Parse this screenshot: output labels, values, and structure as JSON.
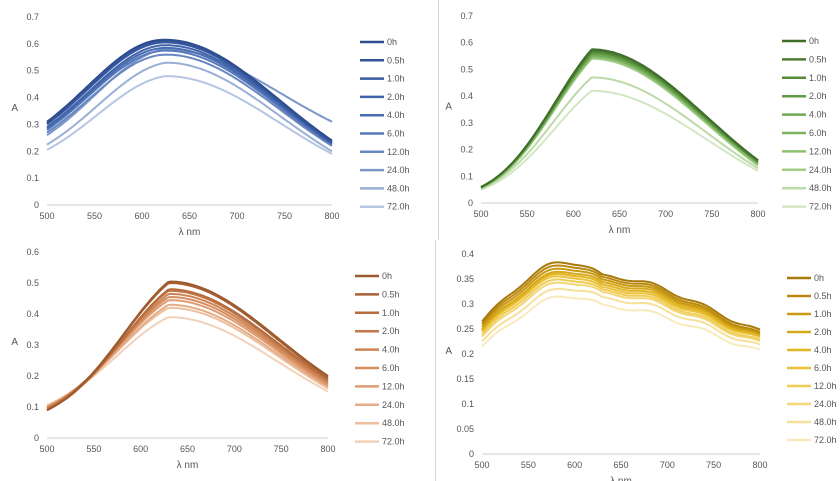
{
  "chart_data": [
    {
      "type": "line",
      "panel": "top-left",
      "xlabel": "λ nm",
      "ylabel": "A",
      "xlim": [
        500,
        800
      ],
      "ylim": [
        0,
        0.7
      ],
      "xticks": [
        "500",
        "550",
        "600",
        "650",
        "700",
        "750",
        "800"
      ],
      "yticks": [
        "0",
        "0.1",
        "0.2",
        "0.3",
        "0.4",
        "0.5",
        "0.6",
        "0.7"
      ],
      "grid": false,
      "legend": "right",
      "colors": [
        "#2f4e8f",
        "#34549a",
        "#3a5ba3",
        "#4063aa",
        "#496db2",
        "#5779b9",
        "#6887c1",
        "#7b97c9",
        "#9aafd6",
        "#b6c5e2"
      ],
      "series": [
        {
          "name": "0h",
          "y0": 0.31,
          "peak": 0.615,
          "peak_x": 625,
          "y800": 0.24
        },
        {
          "name": "0.5h",
          "y0": 0.305,
          "peak": 0.61,
          "peak_x": 625,
          "y800": 0.235
        },
        {
          "name": "1.0h",
          "y0": 0.3,
          "peak": 0.605,
          "peak_x": 625,
          "y800": 0.235
        },
        {
          "name": "2.0h",
          "y0": 0.29,
          "peak": 0.595,
          "peak_x": 625,
          "y800": 0.23
        },
        {
          "name": "4.0h",
          "y0": 0.285,
          "peak": 0.585,
          "peak_x": 625,
          "y800": 0.23
        },
        {
          "name": "6.0h",
          "y0": 0.28,
          "peak": 0.575,
          "peak_x": 625,
          "y800": 0.225
        },
        {
          "name": "12.0h",
          "y0": 0.27,
          "peak": 0.56,
          "peak_x": 625,
          "y800": 0.22
        },
        {
          "name": "24.0h",
          "y0": 0.26,
          "peak": 0.58,
          "peak_x": 625,
          "y800": 0.31
        },
        {
          "name": "48.0h",
          "y0": 0.225,
          "peak": 0.53,
          "peak_x": 625,
          "y800": 0.2
        },
        {
          "name": "72.0h",
          "y0": 0.205,
          "peak": 0.48,
          "peak_x": 625,
          "y800": 0.19
        }
      ]
    },
    {
      "type": "line",
      "panel": "top-right",
      "xlabel": "λ nm",
      "ylabel": "A",
      "xlim": [
        500,
        800
      ],
      "ylim": [
        0,
        0.7
      ],
      "xticks": [
        "500",
        "550",
        "600",
        "650",
        "700",
        "750",
        "800"
      ],
      "yticks": [
        "0",
        "0.1",
        "0.2",
        "0.3",
        "0.4",
        "0.5",
        "0.6",
        "0.7"
      ],
      "grid": false,
      "legend": "right",
      "colors": [
        "#3f6e2a",
        "#4a7d33",
        "#568c3c",
        "#629a46",
        "#6ea852",
        "#7bb35e",
        "#8fc174",
        "#a4cd8c",
        "#bcdaa8",
        "#d2e6c4"
      ],
      "series": [
        {
          "name": "0h",
          "y0": 0.06,
          "peak": 0.575,
          "peak_x": 620,
          "y800": 0.16
        },
        {
          "name": "0.5h",
          "y0": 0.06,
          "peak": 0.57,
          "peak_x": 620,
          "y800": 0.16
        },
        {
          "name": "1.0h",
          "y0": 0.06,
          "peak": 0.565,
          "peak_x": 620,
          "y800": 0.155
        },
        {
          "name": "2.0h",
          "y0": 0.06,
          "peak": 0.56,
          "peak_x": 620,
          "y800": 0.155
        },
        {
          "name": "4.0h",
          "y0": 0.06,
          "peak": 0.555,
          "peak_x": 620,
          "y800": 0.15
        },
        {
          "name": "6.0h",
          "y0": 0.06,
          "peak": 0.55,
          "peak_x": 620,
          "y800": 0.15
        },
        {
          "name": "12.0h",
          "y0": 0.055,
          "peak": 0.545,
          "peak_x": 620,
          "y800": 0.145
        },
        {
          "name": "24.0h",
          "y0": 0.055,
          "peak": 0.54,
          "peak_x": 620,
          "y800": 0.14
        },
        {
          "name": "48.0h",
          "y0": 0.055,
          "peak": 0.47,
          "peak_x": 620,
          "y800": 0.13
        },
        {
          "name": "72.0h",
          "y0": 0.05,
          "peak": 0.42,
          "peak_x": 620,
          "y800": 0.12
        }
      ]
    },
    {
      "type": "line",
      "panel": "bottom-left",
      "xlabel": "λ nm",
      "ylabel": "A",
      "xlim": [
        500,
        800
      ],
      "ylim": [
        0,
        0.6
      ],
      "xticks": [
        "500",
        "550",
        "600",
        "650",
        "700",
        "750",
        "800"
      ],
      "yticks": [
        "0",
        "0.1",
        "0.2",
        "0.3",
        "0.4",
        "0.5",
        "0.6"
      ],
      "grid": false,
      "legend": "right",
      "colors": [
        "#9c5a2e",
        "#a86236",
        "#b66d3e",
        "#c27848",
        "#cd8352",
        "#d68e60",
        "#df9c72",
        "#e6ac87",
        "#eebf9f",
        "#f3d1b9"
      ],
      "series": [
        {
          "name": "0h",
          "y0": 0.09,
          "peak": 0.505,
          "peak_x": 630,
          "y800": 0.2
        },
        {
          "name": "0.5h",
          "y0": 0.09,
          "peak": 0.5,
          "peak_x": 630,
          "y800": 0.195
        },
        {
          "name": "1.0h",
          "y0": 0.09,
          "peak": 0.48,
          "peak_x": 630,
          "y800": 0.19
        },
        {
          "name": "2.0h",
          "y0": 0.095,
          "peak": 0.475,
          "peak_x": 630,
          "y800": 0.185
        },
        {
          "name": "4.0h",
          "y0": 0.095,
          "peak": 0.465,
          "peak_x": 630,
          "y800": 0.18
        },
        {
          "name": "6.0h",
          "y0": 0.1,
          "peak": 0.455,
          "peak_x": 630,
          "y800": 0.175
        },
        {
          "name": "12.0h",
          "y0": 0.1,
          "peak": 0.445,
          "peak_x": 630,
          "y800": 0.17
        },
        {
          "name": "24.0h",
          "y0": 0.1,
          "peak": 0.43,
          "peak_x": 630,
          "y800": 0.165
        },
        {
          "name": "48.0h",
          "y0": 0.105,
          "peak": 0.42,
          "peak_x": 630,
          "y800": 0.16
        },
        {
          "name": "72.0h",
          "y0": 0.105,
          "peak": 0.39,
          "peak_x": 630,
          "y800": 0.15
        }
      ]
    },
    {
      "type": "line",
      "panel": "bottom-right",
      "xlabel": "λ nm",
      "ylabel": "A",
      "xlim": [
        500,
        800
      ],
      "ylim": [
        0,
        0.4
      ],
      "xticks": [
        "500",
        "550",
        "600",
        "650",
        "700",
        "750",
        "800"
      ],
      "yticks": [
        "0",
        "0.05",
        "0.1",
        "0.15",
        "0.2",
        "0.25",
        "0.3",
        "0.35",
        "0.4"
      ],
      "grid": false,
      "legend": "right",
      "colors": [
        "#a87a0a",
        "#bb8a0f",
        "#c99912",
        "#d6a81a",
        "#e2b624",
        "#ebc23a",
        "#f0cc55",
        "#f3d675",
        "#f6e09a",
        "#f9eabd"
      ],
      "series": [
        {
          "name": "0h",
          "y0": 0.265,
          "peak": 0.355,
          "peak_x": 630,
          "y800": 0.245
        },
        {
          "name": "0.5h",
          "y0": 0.26,
          "peak": 0.35,
          "peak_x": 630,
          "y800": 0.24
        },
        {
          "name": "1.0h",
          "y0": 0.255,
          "peak": 0.345,
          "peak_x": 630,
          "y800": 0.237
        },
        {
          "name": "2.0h",
          "y0": 0.25,
          "peak": 0.34,
          "peak_x": 630,
          "y800": 0.235
        },
        {
          "name": "4.0h",
          "y0": 0.248,
          "peak": 0.335,
          "peak_x": 630,
          "y800": 0.232
        },
        {
          "name": "6.0h",
          "y0": 0.245,
          "peak": 0.33,
          "peak_x": 630,
          "y800": 0.23
        },
        {
          "name": "12.0h",
          "y0": 0.24,
          "peak": 0.325,
          "peak_x": 630,
          "y800": 0.225
        },
        {
          "name": "24.0h",
          "y0": 0.235,
          "peak": 0.32,
          "peak_x": 630,
          "y800": 0.222
        },
        {
          "name": "48.0h",
          "y0": 0.225,
          "peak": 0.31,
          "peak_x": 630,
          "y800": 0.215
        },
        {
          "name": "72.0h",
          "y0": 0.215,
          "peak": 0.295,
          "peak_x": 630,
          "y800": 0.205
        }
      ]
    }
  ]
}
